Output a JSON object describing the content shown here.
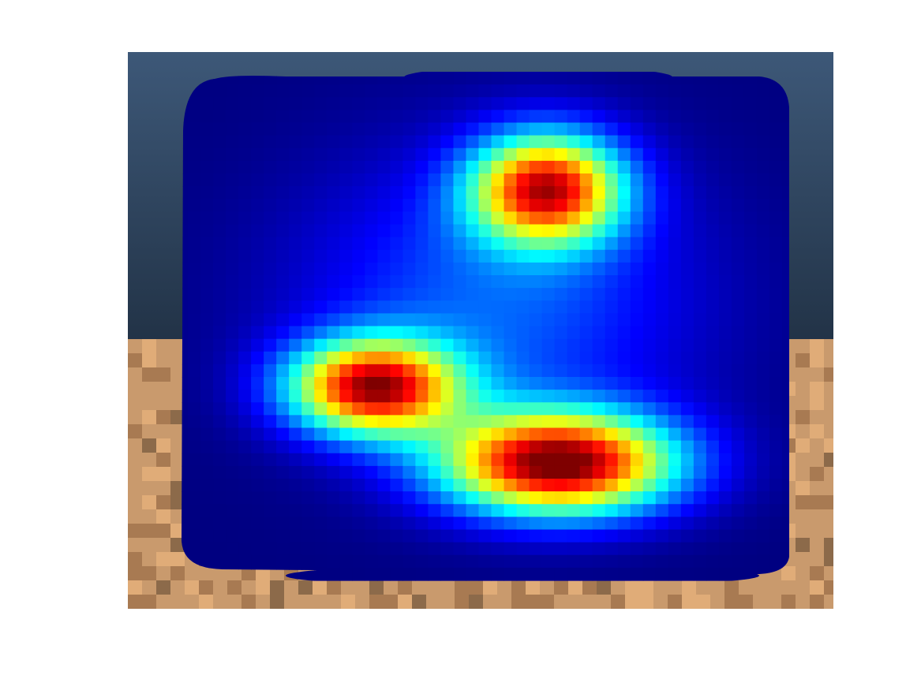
{
  "chart_data": {
    "type": "heatmap",
    "title": "",
    "xlabel": "",
    "ylabel": "",
    "colormap": "jet",
    "colormap_stops": [
      "#00007f",
      "#0000ff",
      "#00ffff",
      "#ffff00",
      "#ff0000",
      "#7f0000"
    ],
    "value_range": [
      0,
      1
    ],
    "grid": false,
    "legend": "none",
    "background": {
      "sky_colors": [
        "#3d5878",
        "#223347"
      ],
      "floor_colors": [
        "#c99a6d",
        "#a87a52",
        "#e0ac78",
        "#8c6a4a"
      ]
    },
    "hotspots": [
      {
        "x": 0.6,
        "y": 0.23,
        "sx": 0.085,
        "sy": 0.075,
        "peak": 0.86
      },
      {
        "x": 0.32,
        "y": 0.62,
        "sx": 0.095,
        "sy": 0.065,
        "peak": 0.9
      },
      {
        "x": 0.62,
        "y": 0.77,
        "sx": 0.13,
        "sy": 0.07,
        "peak": 1.0
      },
      {
        "x": 0.52,
        "y": 0.45,
        "sx": 0.22,
        "sy": 0.2,
        "peak": 0.22
      }
    ]
  }
}
